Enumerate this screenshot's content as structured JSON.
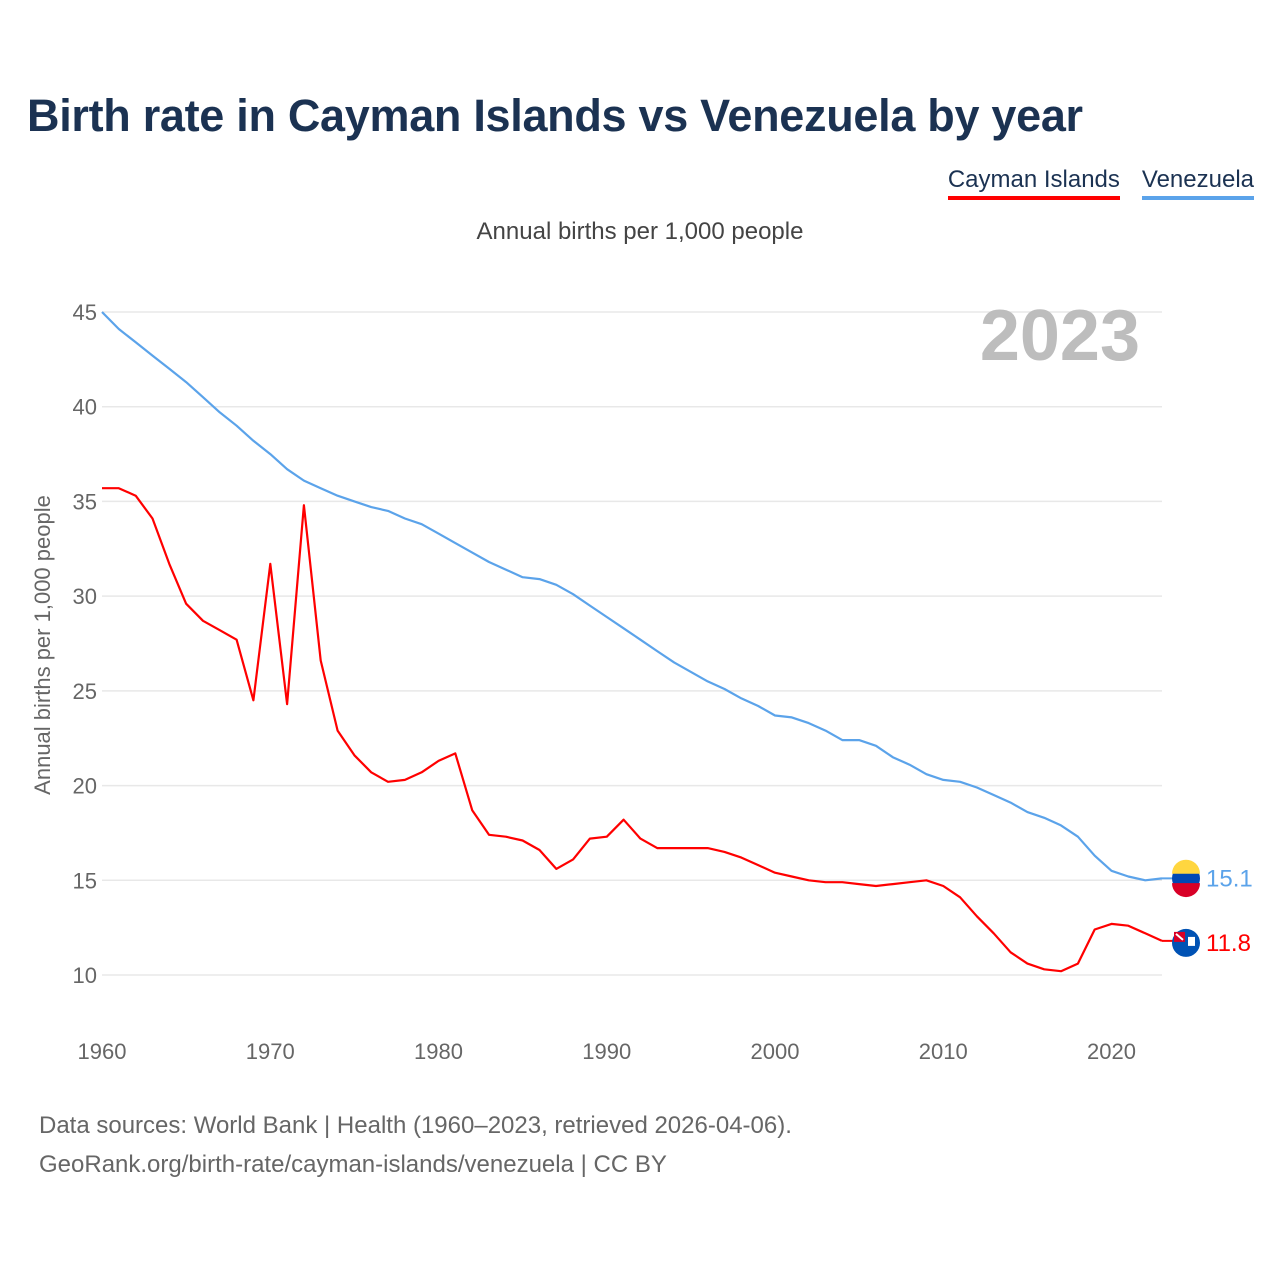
{
  "chart_data": {
    "type": "line",
    "title": "Birth rate in Cayman Islands vs Venezuela by year",
    "subtitle": "Annual births per 1,000 people",
    "xlabel": "",
    "ylabel": "Annual births per 1,000 people",
    "xlim": [
      1960,
      2023
    ],
    "ylim": [
      10,
      45
    ],
    "x_ticks": [
      "1960",
      "1970",
      "1980",
      "1990",
      "2000",
      "2010",
      "2020"
    ],
    "y_ticks": [
      "10",
      "15",
      "20",
      "25",
      "30",
      "35",
      "40",
      "45"
    ],
    "grid": true,
    "legend_position": "top-right",
    "year_label": "2023",
    "x": [
      1960,
      1961,
      1962,
      1963,
      1964,
      1965,
      1966,
      1967,
      1968,
      1969,
      1970,
      1971,
      1972,
      1973,
      1974,
      1975,
      1976,
      1977,
      1978,
      1979,
      1980,
      1981,
      1982,
      1983,
      1984,
      1985,
      1986,
      1987,
      1988,
      1989,
      1990,
      1991,
      1992,
      1993,
      1994,
      1995,
      1996,
      1997,
      1998,
      1999,
      2000,
      2001,
      2002,
      2003,
      2004,
      2005,
      2006,
      2007,
      2008,
      2009,
      2010,
      2011,
      2012,
      2013,
      2014,
      2015,
      2016,
      2017,
      2018,
      2019,
      2020,
      2021,
      2022,
      2023
    ],
    "series": [
      {
        "name": "Cayman Islands",
        "color": "#ff0000",
        "end_label": "11.8",
        "values": [
          35.7,
          35.7,
          35.3,
          34.1,
          31.7,
          29.6,
          28.7,
          28.2,
          27.7,
          24.5,
          31.7,
          24.3,
          34.8,
          26.6,
          22.9,
          21.6,
          20.7,
          20.2,
          20.3,
          20.7,
          21.3,
          21.7,
          18.7,
          17.4,
          17.3,
          17.1,
          16.6,
          15.6,
          16.1,
          17.2,
          17.3,
          18.2,
          17.2,
          16.7,
          16.7,
          16.7,
          16.7,
          16.5,
          16.2,
          15.8,
          15.4,
          15.2,
          15.0,
          14.9,
          14.9,
          14.8,
          14.7,
          14.8,
          14.9,
          15.0,
          14.7,
          14.1,
          13.1,
          12.2,
          11.2,
          10.6,
          10.3,
          10.2,
          10.6,
          12.4,
          12.7,
          12.6,
          12.2,
          11.8
        ]
      },
      {
        "name": "Venezuela",
        "color": "#5ba3ea",
        "end_label": "15.1",
        "values": [
          45.0,
          44.1,
          43.4,
          42.7,
          42.0,
          41.3,
          40.5,
          39.7,
          39.0,
          38.2,
          37.5,
          36.7,
          36.1,
          35.7,
          35.3,
          35.0,
          34.7,
          34.5,
          34.1,
          33.8,
          33.3,
          32.8,
          32.3,
          31.8,
          31.4,
          31.0,
          30.9,
          30.6,
          30.1,
          29.5,
          28.9,
          28.3,
          27.7,
          27.1,
          26.5,
          26.0,
          25.5,
          25.1,
          24.6,
          24.2,
          23.7,
          23.6,
          23.3,
          22.9,
          22.4,
          22.4,
          22.1,
          21.5,
          21.1,
          20.6,
          20.3,
          20.2,
          19.9,
          19.5,
          19.1,
          18.6,
          18.3,
          17.9,
          17.3,
          16.3,
          15.5,
          15.2,
          15.0,
          15.1
        ]
      }
    ]
  },
  "footer": {
    "line1": "Data sources: World Bank | Health (1960–2023, retrieved 2026-04-06).",
    "line2": "GeoRank.org/birth-rate/cayman-islands/venezuela | CC BY"
  }
}
